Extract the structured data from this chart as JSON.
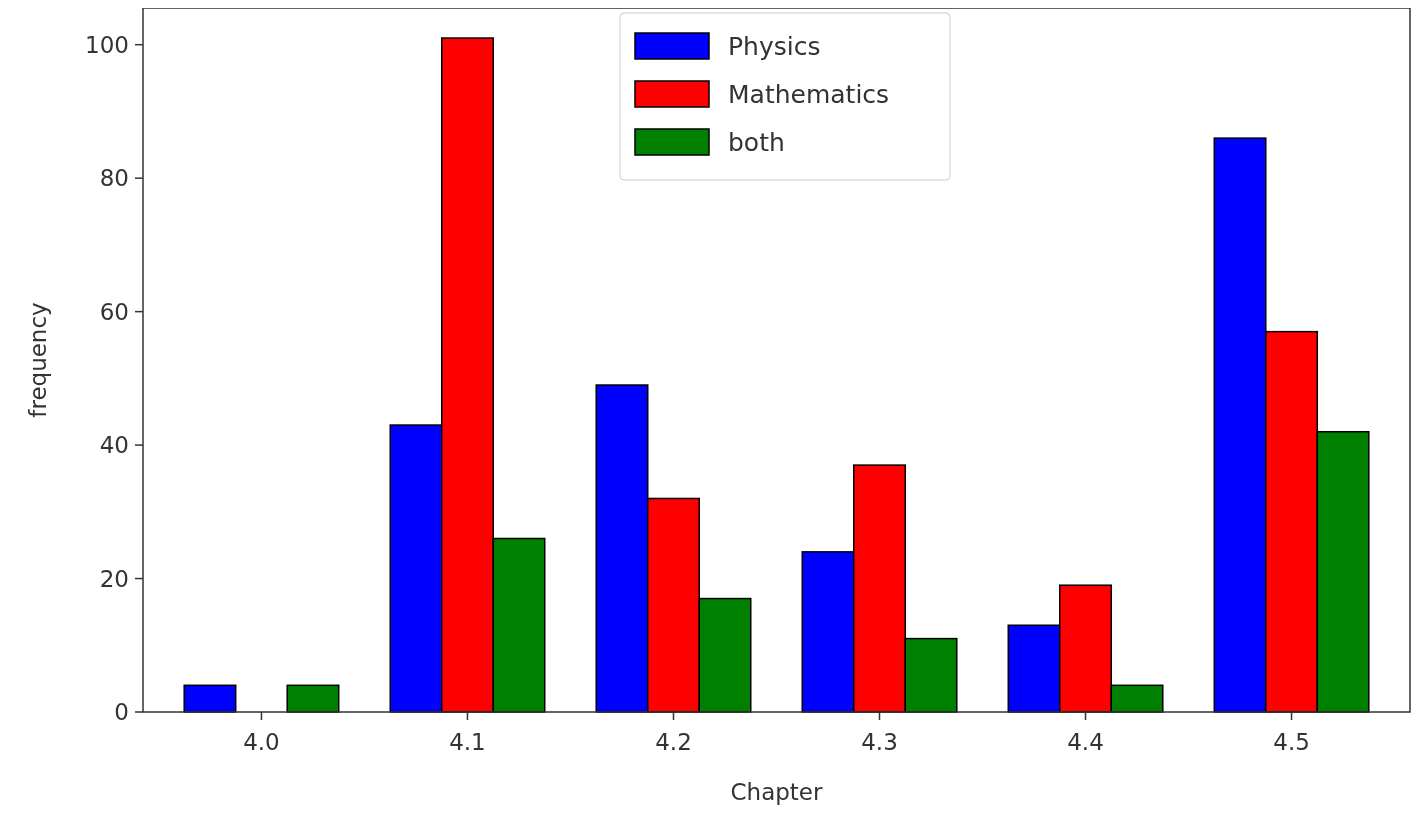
{
  "chart_data": {
    "type": "bar",
    "xlabel": "Chapter",
    "ylabel": "frequency",
    "categories": [
      "4.0",
      "4.1",
      "4.2",
      "4.3",
      "4.4",
      "4.5"
    ],
    "series": [
      {
        "name": "Physics",
        "color": "#0000ff",
        "values": [
          4,
          43,
          49,
          24,
          13,
          86
        ]
      },
      {
        "name": "Mathematics",
        "color": "#ff0000",
        "values": [
          0,
          101,
          32,
          37,
          19,
          57
        ]
      },
      {
        "name": "both",
        "color": "#008000",
        "values": [
          4,
          26,
          17,
          11,
          4,
          42
        ]
      }
    ],
    "ylim": [
      0,
      105.5
    ],
    "yticks": [
      0,
      20,
      40,
      60,
      80,
      100
    ],
    "grid": false,
    "legend": "top"
  }
}
